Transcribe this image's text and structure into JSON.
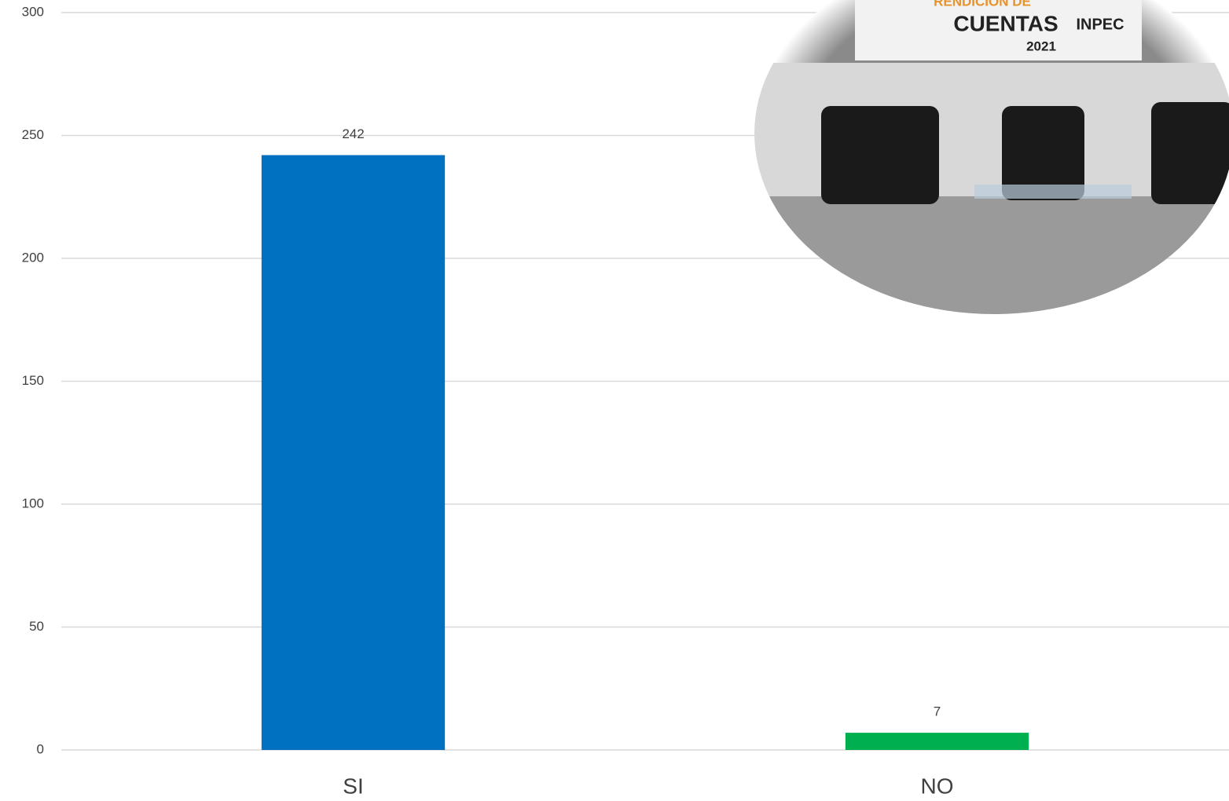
{
  "chart_data": {
    "type": "bar",
    "categories": [
      "SI",
      "NO"
    ],
    "values": [
      242,
      7
    ],
    "colors": [
      "#0070c0",
      "#00b050"
    ],
    "ylim": [
      0,
      300
    ],
    "yticks": [
      0,
      50,
      100,
      150,
      200,
      250,
      300
    ],
    "grid": true,
    "banner": [
      "RENDICION DE",
      "CUENTAS",
      "INPEC",
      "2021"
    ]
  }
}
